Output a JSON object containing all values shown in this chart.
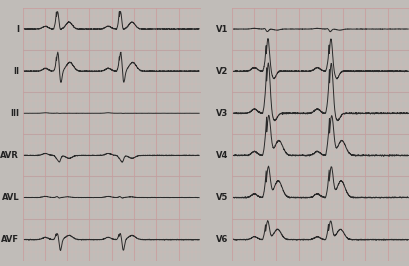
{
  "bg_color": "#e8e4e0",
  "ecg_bg": "#e0dcd5",
  "grid_major_color": "#c8a0a0",
  "grid_minor_color": "#d4b8b5",
  "line_color": "#2a2a2a",
  "label_color": "#222222",
  "fig_bg": "#c0bcb8",
  "left_margin_bg": "#f0eeec",
  "left_panel_labels": [
    "I",
    "II",
    "III",
    "AVR",
    "AVL",
    "AVF"
  ],
  "right_panel_labels": [
    "V1",
    "V2",
    "V3",
    "V4",
    "V5",
    "V6"
  ],
  "separator_color": "#888888",
  "border_color": "#444444"
}
